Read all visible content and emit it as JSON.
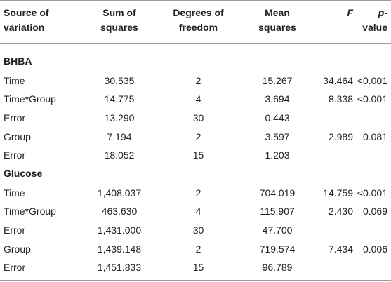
{
  "header": {
    "source_l1": "Source of",
    "source_l2": "variation",
    "ss_l1": "Sum of",
    "ss_l2": "squares",
    "df_l1": "Degrees of",
    "df_l2": "freedom",
    "ms_l1": "Mean",
    "ms_l2": "squares",
    "f": "F",
    "p_italic": "p",
    "p_suffix": "-value"
  },
  "sections": [
    {
      "title": "BHBA",
      "rows": [
        {
          "source": "Time",
          "ss": "30.535",
          "df": "2",
          "ms": "15.267",
          "f": "34.464",
          "p": "<0.001"
        },
        {
          "source": "Time*Group",
          "ss": "14.775",
          "df": "4",
          "ms": "3.694",
          "f": "8.338",
          "p": "<0.001"
        },
        {
          "source": "Error",
          "ss": "13.290",
          "df": "30",
          "ms": "0.443",
          "f": "",
          "p": ""
        },
        {
          "source": "Group",
          "ss": "7.194",
          "df": "2",
          "ms": "3.597",
          "f": "2.989",
          "p": "0.081"
        },
        {
          "source": "Error",
          "ss": "18.052",
          "df": "15",
          "ms": "1.203",
          "f": "",
          "p": ""
        }
      ]
    },
    {
      "title": "Glucose",
      "rows": [
        {
          "source": "Time",
          "ss": "1,408.037",
          "df": "2",
          "ms": "704.019",
          "f": "14.759",
          "p": "<0.001"
        },
        {
          "source": "Time*Group",
          "ss": "463.630",
          "df": "4",
          "ms": "115.907",
          "f": "2.430",
          "p": "0.069"
        },
        {
          "source": "Error",
          "ss": "1,431.000",
          "df": "30",
          "ms": "47.700",
          "f": "",
          "p": ""
        },
        {
          "source": "Group",
          "ss": "1,439.148",
          "df": "2",
          "ms": "719.574",
          "f": "7.434",
          "p": "0.006"
        },
        {
          "source": "Error",
          "ss": "1,451.833",
          "df": "15",
          "ms": "96.789",
          "f": "",
          "p": ""
        }
      ]
    }
  ]
}
